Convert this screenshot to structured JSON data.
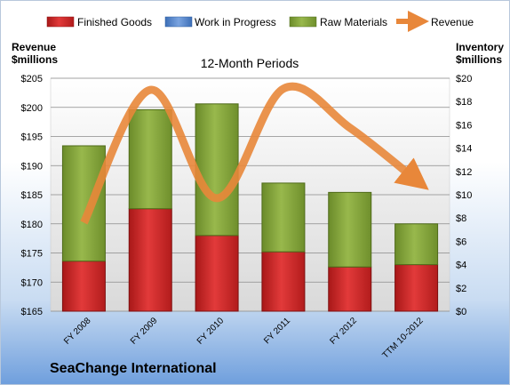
{
  "chart_data": {
    "type": "bar",
    "title": "12-Month Periods",
    "company": "SeaChange International",
    "categories": [
      "FY 2008",
      "FY 2009",
      "FY 2010",
      "FY 2011",
      "FY 2012",
      "TTM 10-2012"
    ],
    "left_axis": {
      "label_line1": "Revenue",
      "label_line2": "$millions",
      "ylim": [
        165,
        205
      ],
      "ticks": [
        "$165",
        "$170",
        "$175",
        "$180",
        "$185",
        "$190",
        "$195",
        "$200",
        "$205"
      ]
    },
    "right_axis": {
      "label_line1": "Inventory",
      "label_line2": "$millions",
      "ylim": [
        0,
        20
      ],
      "ticks": [
        "$0",
        "$2",
        "$4",
        "$6",
        "$8",
        "$10",
        "$12",
        "$14",
        "$16",
        "$18",
        "$20"
      ]
    },
    "series": [
      {
        "name": "Finished Goods",
        "axis": "right",
        "stack": true,
        "color": "#cc2222",
        "values": [
          4.3,
          8.8,
          6.5,
          5.1,
          3.8,
          4.0
        ]
      },
      {
        "name": "Work in Progress",
        "axis": "right",
        "stack": true,
        "color": "#5b8bd0",
        "values": [
          0.0,
          0.0,
          0.0,
          0.0,
          0.0,
          0.0
        ]
      },
      {
        "name": "Raw Materials",
        "axis": "right",
        "stack": true,
        "color": "#86a83a",
        "values": [
          9.9,
          8.5,
          11.3,
          5.9,
          6.4,
          3.5
        ]
      },
      {
        "name": "Revenue",
        "axis": "left",
        "type": "line",
        "color": "#e8873a",
        "values": [
          180.2,
          203.0,
          184.4,
          203.2,
          196.5,
          187.5
        ]
      }
    ],
    "grid": true,
    "legend": "top"
  }
}
